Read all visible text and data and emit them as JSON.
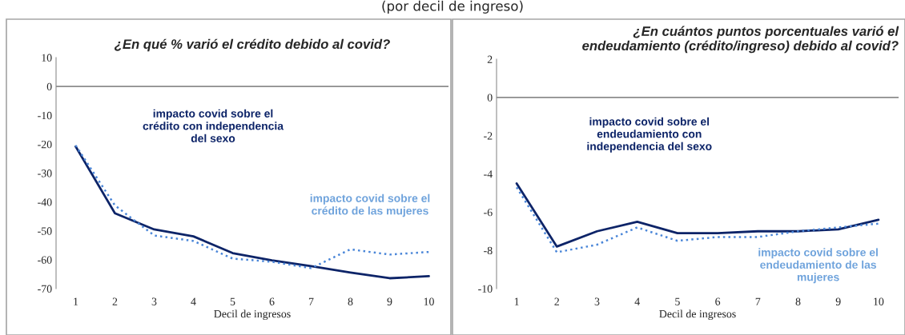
{
  "chart_data": [
    {
      "type": "line",
      "title": "¿En qué % varió el crédito debido al covid?",
      "xlabel": "Decil de ingresos",
      "annotations": [
        "(por decil de ingreso)"
      ],
      "categories": [
        "1",
        "2",
        "3",
        "4",
        "5",
        "6",
        "7",
        "8",
        "9",
        "10"
      ],
      "series": [
        {
          "name": "impacto covid sobre el\ncrédito con independencia\ndel sexo",
          "color": "#0d2468",
          "line_style": "solid",
          "values": [
            -20.8,
            -43.9,
            -49.5,
            -51.9,
            -57.7,
            -60.2,
            -62.2,
            -64.4,
            -66.4,
            -65.7
          ]
        },
        {
          "name": "impacto covid sobre el\ncrédito de las mujeres",
          "color": "#4a86d8",
          "line_style": "dotted",
          "values": [
            -20.4,
            -41.2,
            -51.6,
            -53.5,
            -59.6,
            -60.7,
            -62.9,
            -56.4,
            -58.2,
            -57.3
          ]
        }
      ],
      "ylim": [
        -70,
        10
      ],
      "yticks": [
        -70,
        -60,
        -50,
        -40,
        -30,
        -20,
        -10,
        0,
        10
      ],
      "ref_lines": [
        {
          "axis": "y",
          "value": 0,
          "color": "#8c8c8c"
        }
      ],
      "grid": false,
      "legend": false,
      "marker": "none"
    },
    {
      "type": "line",
      "title": "¿En cuántos puntos porcentuales varió el\nendeudamiento (crédito/ingreso) debido al covid?",
      "xlabel": "Decil de ingresos",
      "categories": [
        "1",
        "2",
        "3",
        "4",
        "5",
        "6",
        "7",
        "8",
        "9",
        "10"
      ],
      "series": [
        {
          "name": "impacto covid sobre el\nendeudamiento con\nindependencia del sexo",
          "color": "#0d2468",
          "line_style": "solid",
          "values": [
            -4.5,
            -7.8,
            -7.0,
            -6.5,
            -7.1,
            -7.1,
            -7.0,
            -7.0,
            -6.9,
            -6.4
          ]
        },
        {
          "name": "impacto covid sobre el\nendeudamiento de las\nmujeres",
          "color": "#4a86d8",
          "line_style": "dotted",
          "values": [
            -4.7,
            -8.1,
            -7.7,
            -6.8,
            -7.5,
            -7.3,
            -7.3,
            -7.0,
            -6.8,
            -6.6
          ]
        }
      ],
      "ylim": [
        -10,
        2
      ],
      "yticks": [
        -10,
        -8,
        -6,
        -4,
        -2,
        0,
        2
      ],
      "ref_lines": [
        {
          "axis": "y",
          "value": 0,
          "color": "#8c8c8c"
        }
      ],
      "grid": false,
      "legend": false,
      "marker": "none"
    }
  ]
}
